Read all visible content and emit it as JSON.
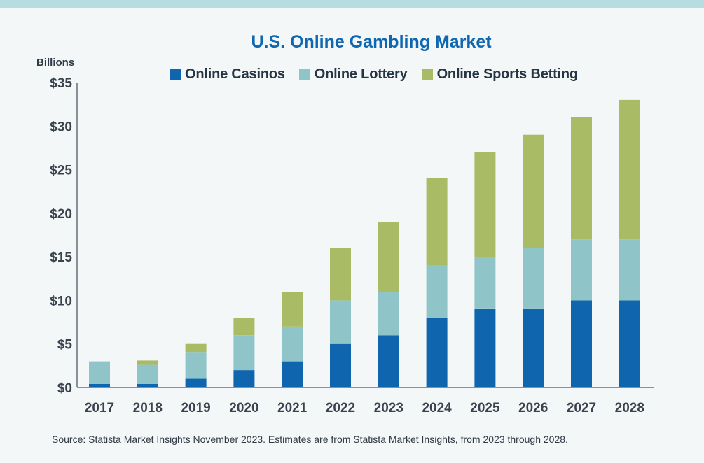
{
  "chart_data": {
    "type": "bar",
    "stacked": true,
    "title": "U.S. Online Gambling Market",
    "ylabel": "Billions",
    "xlabel": "",
    "ylim": [
      0,
      35
    ],
    "yticks": [
      0,
      5,
      10,
      15,
      20,
      25,
      30,
      35
    ],
    "ytick_labels": [
      "$0",
      "$5",
      "$10",
      "$15",
      "$20",
      "$25",
      "$30",
      "$35"
    ],
    "categories": [
      "2017",
      "2018",
      "2019",
      "2020",
      "2021",
      "2022",
      "2023",
      "2024",
      "2025",
      "2026",
      "2027",
      "2028"
    ],
    "series": [
      {
        "name": "Online Casinos",
        "color": "#0f65ae",
        "values": [
          0.4,
          0.4,
          1.0,
          2.0,
          3.0,
          5.0,
          6.0,
          8.0,
          9.0,
          9.0,
          10.0,
          10.0
        ]
      },
      {
        "name": "Online Lottery",
        "color": "#8fc5c8",
        "values": [
          2.6,
          2.2,
          3.0,
          4.0,
          4.0,
          5.0,
          5.0,
          6.0,
          6.0,
          7.0,
          7.0,
          7.0
        ]
      },
      {
        "name": "Online Sports Betting",
        "color": "#a9bb65",
        "values": [
          0.0,
          0.5,
          1.0,
          2.0,
          4.0,
          6.0,
          8.0,
          10.0,
          12.0,
          13.0,
          14.0,
          16.0
        ]
      }
    ],
    "legend_position": "top",
    "grid": false,
    "source": "Source: Statista Market Insights November 2023. Estimates are from Statista Market Insights, from 2023 through 2028."
  },
  "colors": {
    "title": "#0f67b1",
    "axis": "#8a9097",
    "tick_text": "#3a434d",
    "background": "#f4f7f8",
    "top_band": "#b8dde0"
  }
}
